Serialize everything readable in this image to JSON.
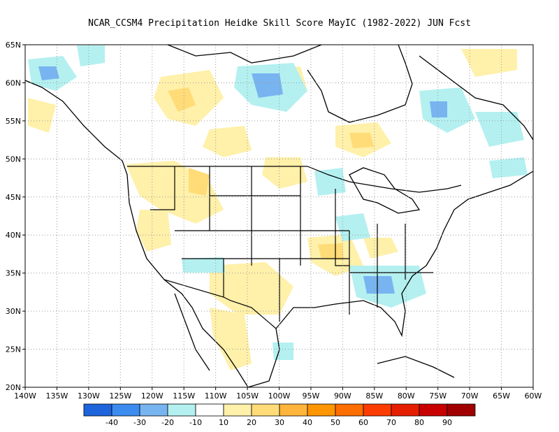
{
  "title": "NCAR_CCSM4  Precipitation Heidke Skill Score MayIC (1982-2022) JUN Fcst",
  "map": {
    "lon_range": [
      -140,
      -60
    ],
    "lat_range": [
      20,
      65
    ],
    "lon_ticks": [
      "140W",
      "135W",
      "130W",
      "125W",
      "120W",
      "115W",
      "110W",
      "105W",
      "100W",
      "95W",
      "90W",
      "85W",
      "80W",
      "75W",
      "70W",
      "65W",
      "60W"
    ],
    "lat_ticks": [
      "65N",
      "60N",
      "55N",
      "50N",
      "45N",
      "40N",
      "35N",
      "30N",
      "25N",
      "20N"
    ],
    "grid": true
  },
  "legend": {
    "colors": [
      "#1e64dc",
      "#3c8cf0",
      "#78b4f0",
      "#b4f0f0",
      "#ffffff",
      "#fff0aa",
      "#ffdc78",
      "#ffb43c",
      "#ff9600",
      "#ff6e00",
      "#ff3c00",
      "#e61e00",
      "#c80000",
      "#a00000"
    ],
    "labels": [
      "-40",
      "-30",
      "-20",
      "-10",
      "10",
      "20",
      "30",
      "40",
      "50",
      "60",
      "70",
      "80",
      "90"
    ]
  }
}
